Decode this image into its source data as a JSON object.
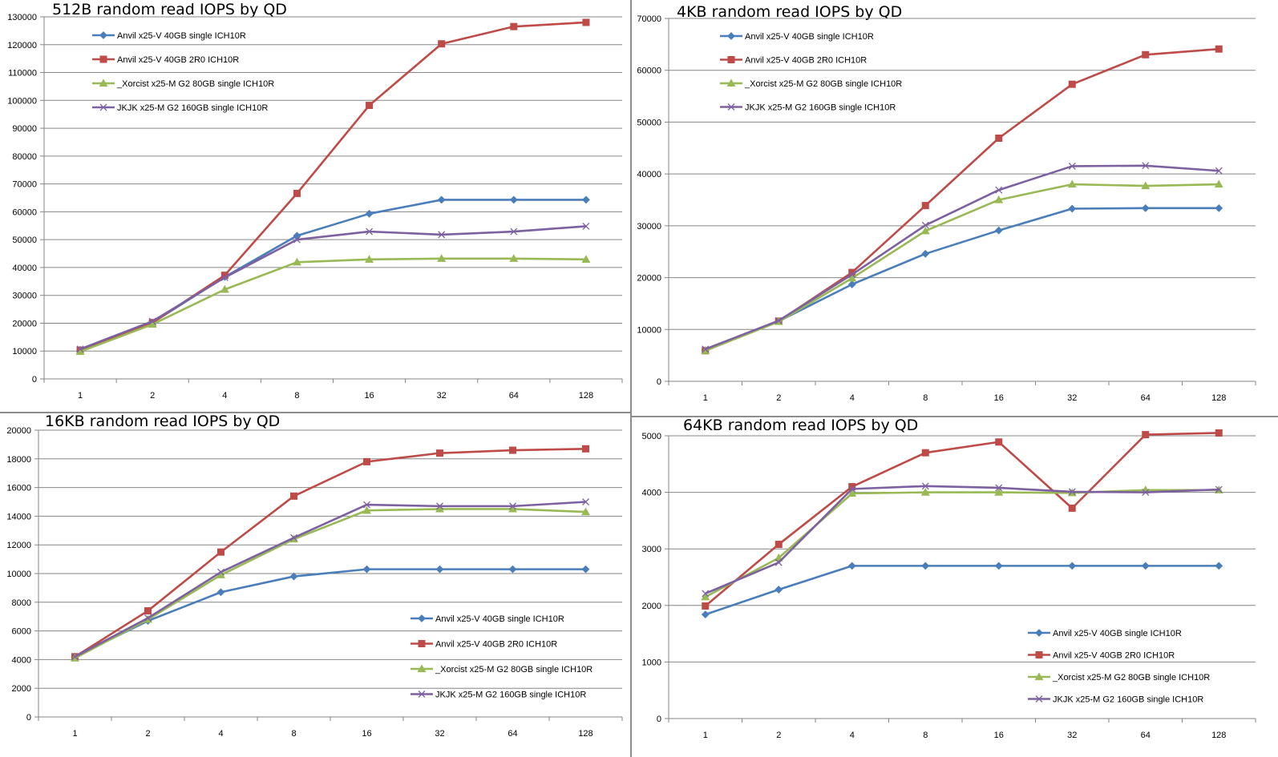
{
  "colors": {
    "series": [
      "#4a7ebb",
      "#be4b48",
      "#98b954",
      "#7d60a0"
    ],
    "gridline": "#868686",
    "axis": "#868686"
  },
  "chart_data": [
    {
      "type": "line",
      "title": "512B random read IOPS by QD",
      "categories": [
        "1",
        "2",
        "4",
        "8",
        "16",
        "32",
        "64",
        "128"
      ],
      "ylim": [
        0,
        130000
      ],
      "ytick_step": 10000,
      "yticks": [
        "0",
        "10000",
        "20000",
        "30000",
        "40000",
        "50000",
        "60000",
        "70000",
        "80000",
        "90000",
        "100000",
        "110000",
        "120000",
        "130000"
      ],
      "grid": true,
      "legend_position": "top-left",
      "series": [
        {
          "name": "Anvil x25-V 40GB single ICH10R",
          "marker": "diamond",
          "values": [
            10400,
            20200,
            36600,
            51400,
            59300,
            64300,
            64300,
            64300
          ]
        },
        {
          "name": "Anvil x25-V 40GB 2R0 ICH10R",
          "marker": "square",
          "values": [
            10300,
            20200,
            37200,
            66600,
            98200,
            120300,
            126500,
            128000
          ]
        },
        {
          "name": "_Xorcist x25-M G2 80GB single ICH10R",
          "marker": "triangle",
          "values": [
            9800,
            19600,
            32100,
            41900,
            42900,
            43200,
            43200,
            42900
          ]
        },
        {
          "name": "JKJK x25-M G2 160GB single ICH10R",
          "marker": "x",
          "values": [
            10700,
            20700,
            36400,
            50000,
            52900,
            51800,
            52900,
            54800
          ]
        }
      ]
    },
    {
      "type": "line",
      "title": "4KB random read IOPS by QD",
      "categories": [
        "1",
        "2",
        "4",
        "8",
        "16",
        "32",
        "64",
        "128"
      ],
      "ylim": [
        0,
        70000
      ],
      "ytick_step": 10000,
      "yticks": [
        "0",
        "10000",
        "20000",
        "30000",
        "40000",
        "50000",
        "60000",
        "70000"
      ],
      "grid": true,
      "legend_position": "top-left",
      "series": [
        {
          "name": "Anvil x25-V 40GB single ICH10R",
          "marker": "diamond",
          "values": [
            6000,
            11600,
            18700,
            24600,
            29100,
            33300,
            33400,
            33400
          ]
        },
        {
          "name": "Anvil x25-V 40GB 2R0 ICH10R",
          "marker": "square",
          "values": [
            5900,
            11600,
            21000,
            33900,
            46900,
            57300,
            63000,
            64100
          ]
        },
        {
          "name": "_Xorcist x25-M G2 80GB single ICH10R",
          "marker": "triangle",
          "values": [
            5900,
            11500,
            19900,
            29000,
            35000,
            38000,
            37700,
            38000
          ]
        },
        {
          "name": "JKJK x25-M G2 160GB single ICH10R",
          "marker": "x",
          "values": [
            6200,
            11700,
            20600,
            30100,
            36900,
            41500,
            41600,
            40600
          ]
        }
      ]
    },
    {
      "type": "line",
      "title": "16KB random read IOPS by QD",
      "categories": [
        "1",
        "2",
        "4",
        "8",
        "16",
        "32",
        "64",
        "128"
      ],
      "ylim": [
        0,
        20000
      ],
      "ytick_step": 2000,
      "yticks": [
        "0",
        "2000",
        "4000",
        "6000",
        "8000",
        "10000",
        "12000",
        "14000",
        "16000",
        "18000",
        "20000"
      ],
      "grid": true,
      "legend_position": "bottom-right",
      "series": [
        {
          "name": "Anvil x25-V 40GB single ICH10R",
          "marker": "diamond",
          "values": [
            4200,
            6700,
            8700,
            9800,
            10300,
            10300,
            10300,
            10300
          ]
        },
        {
          "name": "Anvil x25-V 40GB 2R0 ICH10R",
          "marker": "square",
          "values": [
            4200,
            7400,
            11500,
            15400,
            17800,
            18400,
            18600,
            18700
          ]
        },
        {
          "name": "_Xorcist x25-M G2 80GB single ICH10R",
          "marker": "triangle",
          "values": [
            4100,
            6800,
            9900,
            12400,
            14400,
            14500,
            14500,
            14300
          ]
        },
        {
          "name": "JKJK x25-M G2 160GB single ICH10R",
          "marker": "x",
          "values": [
            4200,
            6900,
            10100,
            12500,
            14800,
            14700,
            14700,
            15000
          ]
        }
      ]
    },
    {
      "type": "line",
      "title": "64KB random read IOPS by QD",
      "categories": [
        "1",
        "2",
        "4",
        "8",
        "16",
        "32",
        "64",
        "128"
      ],
      "ylim": [
        0,
        5000
      ],
      "ytick_step": 1000,
      "yticks": [
        "0",
        "1000",
        "2000",
        "3000",
        "4000",
        "5000"
      ],
      "grid": true,
      "legend_position": "bottom-right",
      "series": [
        {
          "name": "Anvil x25-V 40GB single ICH10R",
          "marker": "diamond",
          "values": [
            1840,
            2280,
            2700,
            2700,
            2700,
            2700,
            2700,
            2700
          ]
        },
        {
          "name": "Anvil x25-V 40GB 2R0 ICH10R",
          "marker": "square",
          "values": [
            1990,
            3080,
            4100,
            4700,
            4890,
            3720,
            5020,
            5050
          ]
        },
        {
          "name": "_Xorcist x25-M G2 80GB single ICH10R",
          "marker": "triangle",
          "values": [
            2150,
            2840,
            3980,
            4000,
            4000,
            3990,
            4040,
            4040
          ]
        },
        {
          "name": "JKJK x25-M G2 160GB single ICH10R",
          "marker": "x",
          "values": [
            2210,
            2760,
            4060,
            4110,
            4080,
            4010,
            4000,
            4050
          ]
        }
      ]
    }
  ]
}
